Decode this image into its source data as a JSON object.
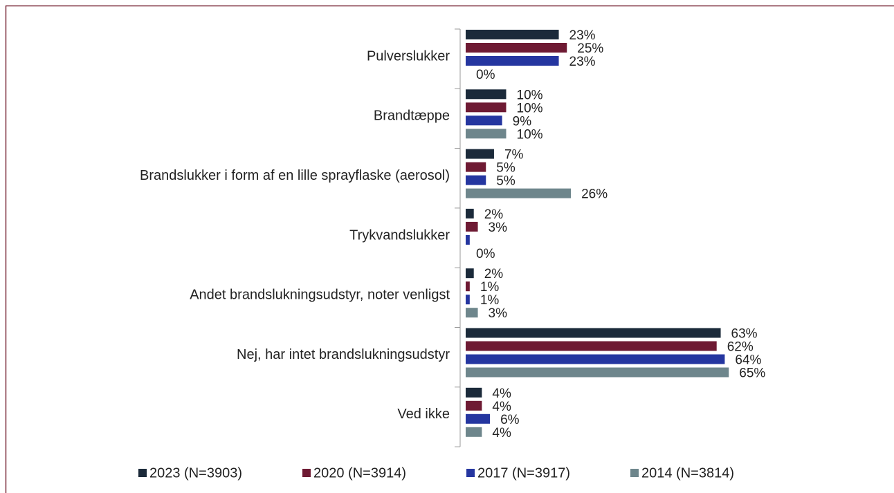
{
  "chart_data": {
    "type": "bar",
    "orientation": "horizontal",
    "categories": [
      "Pulverslukker",
      "Brandtæppe",
      "Brandslukker i form af en lille sprayflaske (aerosol)",
      "Trykvandslukker",
      "Andet brandslukningsudstyr, noter venligst",
      "Nej, har intet brandslukningsudstyr",
      "Ved ikke"
    ],
    "series": [
      {
        "name": "2023 (N=3903)",
        "color": "#1b2a3a",
        "values": [
          23,
          10,
          7,
          2,
          2,
          63,
          4
        ],
        "value_labels": [
          "23%",
          "10%",
          "7%",
          "2%",
          "2%",
          "63%",
          "4%"
        ]
      },
      {
        "name": "2020 (N=3914)",
        "color": "#6e1a33",
        "values": [
          25,
          10,
          5,
          3,
          1,
          62,
          4
        ],
        "value_labels": [
          "25%",
          "10%",
          "5%",
          "3%",
          "1%",
          "62%",
          "4%"
        ]
      },
      {
        "name": "2017 (N=3917)",
        "color": "#2536a0",
        "values": [
          23,
          9,
          5,
          1,
          1,
          64,
          6
        ],
        "value_labels": [
          "23%",
          "9%",
          "5%",
          null,
          "1%",
          "64%",
          "6%"
        ]
      },
      {
        "name": "2014 (N=3814)",
        "color": "#6e868c",
        "values": [
          0,
          10,
          26,
          0,
          3,
          65,
          4
        ],
        "value_labels": [
          "0%",
          "10%",
          "26%",
          "0%",
          "3%",
          "65%",
          "4%"
        ]
      }
    ],
    "xlim": [
      0,
      100
    ],
    "legend": "bottom"
  }
}
